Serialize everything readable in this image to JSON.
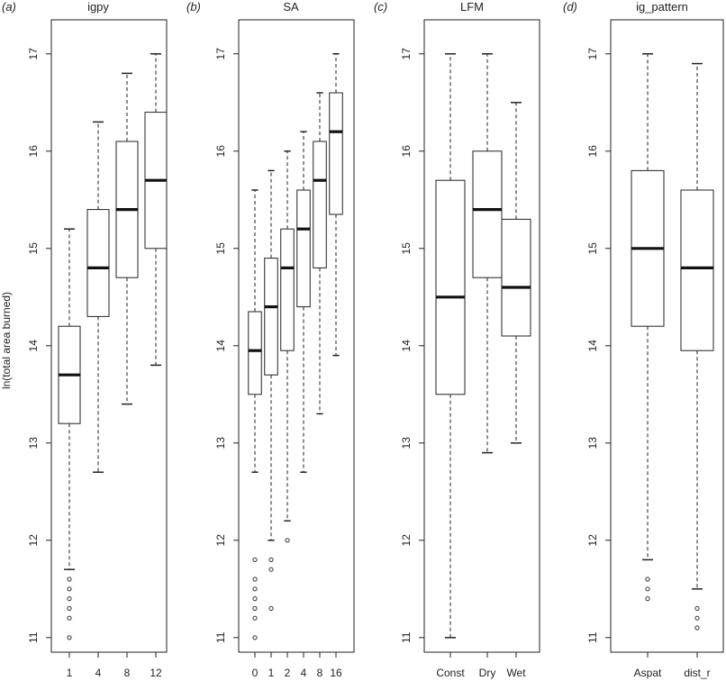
{
  "ylabel": "ln(total area burned)",
  "chart_data": [
    {
      "type": "box",
      "panel_label": "(a)",
      "title": "igpy",
      "categories": [
        "1",
        "4",
        "8",
        "12"
      ],
      "ylim": [
        10.85,
        17.35
      ],
      "yticks": [
        11,
        12,
        13,
        14,
        15,
        16,
        17
      ],
      "boxes": [
        {
          "whisker_low": 11.7,
          "q1": 13.2,
          "median": 13.7,
          "q3": 14.2,
          "whisker_high": 15.2,
          "outliers": [
            11.6,
            11.5,
            11.4,
            11.3,
            11.2,
            11.0
          ]
        },
        {
          "whisker_low": 12.7,
          "q1": 14.3,
          "median": 14.8,
          "q3": 15.4,
          "whisker_high": 16.3,
          "outliers": []
        },
        {
          "whisker_low": 13.4,
          "q1": 14.7,
          "median": 15.4,
          "q3": 16.1,
          "whisker_high": 16.8,
          "outliers": []
        },
        {
          "whisker_low": 13.8,
          "q1": 15.0,
          "median": 15.7,
          "q3": 16.4,
          "whisker_high": 17.0,
          "outliers": []
        }
      ]
    },
    {
      "type": "box",
      "panel_label": "(b)",
      "title": "SA",
      "categories": [
        "0",
        "1",
        "2",
        "4",
        "8",
        "16"
      ],
      "ylim": [
        10.85,
        17.35
      ],
      "yticks": [
        11,
        12,
        13,
        14,
        15,
        16,
        17
      ],
      "boxes": [
        {
          "whisker_low": 12.7,
          "q1": 13.5,
          "median": 13.95,
          "q3": 14.35,
          "whisker_high": 15.6,
          "outliers": [
            11.8,
            11.6,
            11.5,
            11.4,
            11.3,
            11.2,
            11.0
          ]
        },
        {
          "whisker_low": 12.0,
          "q1": 13.7,
          "median": 14.4,
          "q3": 14.9,
          "whisker_high": 15.8,
          "outliers": [
            11.8,
            11.7,
            11.3
          ]
        },
        {
          "whisker_low": 12.2,
          "q1": 13.95,
          "median": 14.8,
          "q3": 15.2,
          "whisker_high": 16.0,
          "outliers": [
            12.0
          ]
        },
        {
          "whisker_low": 12.7,
          "q1": 14.4,
          "median": 15.2,
          "q3": 15.6,
          "whisker_high": 16.2,
          "outliers": []
        },
        {
          "whisker_low": 13.3,
          "q1": 14.8,
          "median": 15.7,
          "q3": 16.1,
          "whisker_high": 16.6,
          "outliers": []
        },
        {
          "whisker_low": 13.9,
          "q1": 15.35,
          "median": 16.2,
          "q3": 16.6,
          "whisker_high": 17.0,
          "outliers": []
        }
      ]
    },
    {
      "type": "box",
      "panel_label": "(c)",
      "title": "LFM",
      "categories": [
        "Const",
        "Dry",
        "Wet"
      ],
      "ylim": [
        10.85,
        17.35
      ],
      "yticks": [
        11,
        12,
        13,
        14,
        15,
        16,
        17
      ],
      "boxes": [
        {
          "whisker_low": 11.0,
          "q1": 13.5,
          "median": 14.5,
          "q3": 15.7,
          "whisker_high": 17.0,
          "outliers": []
        },
        {
          "whisker_low": 12.9,
          "q1": 14.7,
          "median": 15.4,
          "q3": 16.0,
          "whisker_high": 17.0,
          "outliers": []
        },
        {
          "whisker_low": 13.0,
          "q1": 14.1,
          "median": 14.6,
          "q3": 15.3,
          "whisker_high": 16.5,
          "outliers": []
        }
      ]
    },
    {
      "type": "box",
      "panel_label": "(d)",
      "title": "ig_pattern",
      "categories": [
        "Aspat",
        "dist_r"
      ],
      "ylim": [
        10.85,
        17.35
      ],
      "yticks": [
        11,
        12,
        13,
        14,
        15,
        16,
        17
      ],
      "boxes": [
        {
          "whisker_low": 11.8,
          "q1": 14.2,
          "median": 15.0,
          "q3": 15.8,
          "whisker_high": 17.0,
          "outliers": [
            11.6,
            11.5,
            11.4
          ]
        },
        {
          "whisker_low": 11.5,
          "q1": 13.95,
          "median": 14.8,
          "q3": 15.6,
          "whisker_high": 16.9,
          "outliers": [
            11.3,
            11.2,
            11.1
          ]
        }
      ]
    }
  ]
}
